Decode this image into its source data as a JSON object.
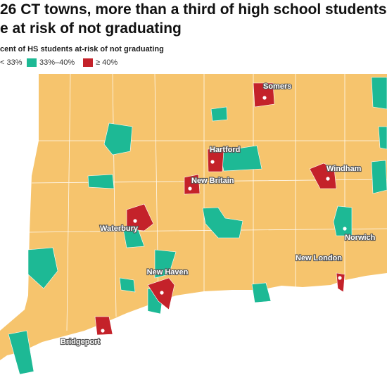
{
  "header": {
    "title_lines": [
      "26 CT towns, more than a third of high school students",
      "e at risk of not graduating"
    ]
  },
  "legend": {
    "title": "cent of HS students at-risk of not graduating",
    "items": [
      {
        "label": "< 33%",
        "color": "#f6c46d"
      },
      {
        "label": "33%–40%",
        "color": "#1db995"
      },
      {
        "label": "≥ 40%",
        "color": "#c4222a"
      }
    ]
  },
  "towns": [
    {
      "label": "Somers"
    },
    {
      "label": "Hartford"
    },
    {
      "label": "New Britain"
    },
    {
      "label": "Windham"
    },
    {
      "label": "Waterbury"
    },
    {
      "label": "Norwich"
    },
    {
      "label": "New London"
    },
    {
      "label": "New Haven"
    },
    {
      "label": "Bridgeport"
    }
  ]
}
